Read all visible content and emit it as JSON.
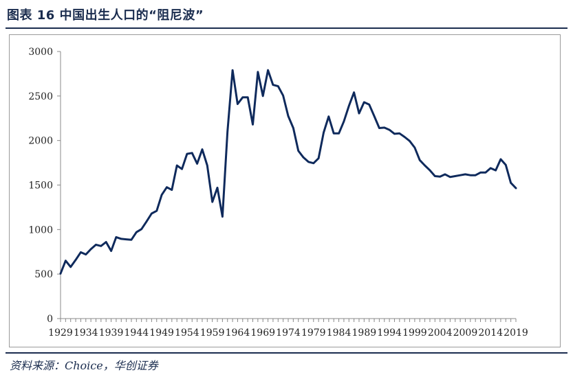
{
  "header": {
    "title": "图表 16    中国出生人口的“阻尼波”"
  },
  "footer": {
    "source": "资料来源：Choice，华创证券"
  },
  "chart_data": {
    "type": "line",
    "title": "",
    "xlabel": "",
    "ylabel": "",
    "ylim": [
      0,
      3000
    ],
    "yticks": [
      0,
      500,
      1000,
      1500,
      2000,
      2500,
      3000
    ],
    "xticks": [
      "1929",
      "1934",
      "1939",
      "1944",
      "1949",
      "1954",
      "1959",
      "1964",
      "1969",
      "1974",
      "1979",
      "1984",
      "1989",
      "1994",
      "1999",
      "2004",
      "2009",
      "2014",
      "2019"
    ],
    "grid": false,
    "legend": "none",
    "line_color": "#0f2a5c",
    "x": [
      1929,
      1930,
      1931,
      1932,
      1933,
      1934,
      1935,
      1936,
      1937,
      1938,
      1939,
      1940,
      1941,
      1942,
      1943,
      1944,
      1945,
      1946,
      1947,
      1948,
      1949,
      1950,
      1951,
      1952,
      1953,
      1954,
      1955,
      1956,
      1957,
      1958,
      1959,
      1960,
      1961,
      1962,
      1963,
      1964,
      1965,
      1966,
      1967,
      1968,
      1969,
      1970,
      1971,
      1972,
      1973,
      1974,
      1975,
      1976,
      1977,
      1978,
      1979,
      1980,
      1981,
      1982,
      1983,
      1984,
      1985,
      1986,
      1987,
      1988,
      1989,
      1990,
      1991,
      1992,
      1993,
      1994,
      1995,
      1996,
      1997,
      1998,
      1999,
      2000,
      2001,
      2002,
      2003,
      2004,
      2005,
      2006,
      2007,
      2008,
      2009,
      2010,
      2011,
      2012,
      2013,
      2014,
      2015,
      2016,
      2017,
      2018,
      2019
    ],
    "series": [
      {
        "values": [
          505,
          650,
          580,
          660,
          745,
          720,
          780,
          830,
          815,
          860,
          760,
          915,
          895,
          890,
          885,
          970,
          1005,
          1090,
          1180,
          1210,
          1390,
          1475,
          1445,
          1720,
          1680,
          1850,
          1860,
          1740,
          1900,
          1720,
          1310,
          1470,
          1145,
          2100,
          2790,
          2410,
          2485,
          2485,
          2180,
          2770,
          2500,
          2790,
          2625,
          2610,
          2505,
          2275,
          2140,
          1885,
          1810,
          1760,
          1745,
          1800,
          2090,
          2270,
          2080,
          2080,
          2215,
          2390,
          2540,
          2305,
          2430,
          2405,
          2275,
          2140,
          2145,
          2120,
          2075,
          2080,
          2040,
          1995,
          1920,
          1780,
          1720,
          1665,
          1600,
          1595,
          1620,
          1590,
          1600,
          1610,
          1620,
          1610,
          1610,
          1640,
          1640,
          1690,
          1665,
          1790,
          1725,
          1525,
          1465
        ]
      }
    ]
  }
}
